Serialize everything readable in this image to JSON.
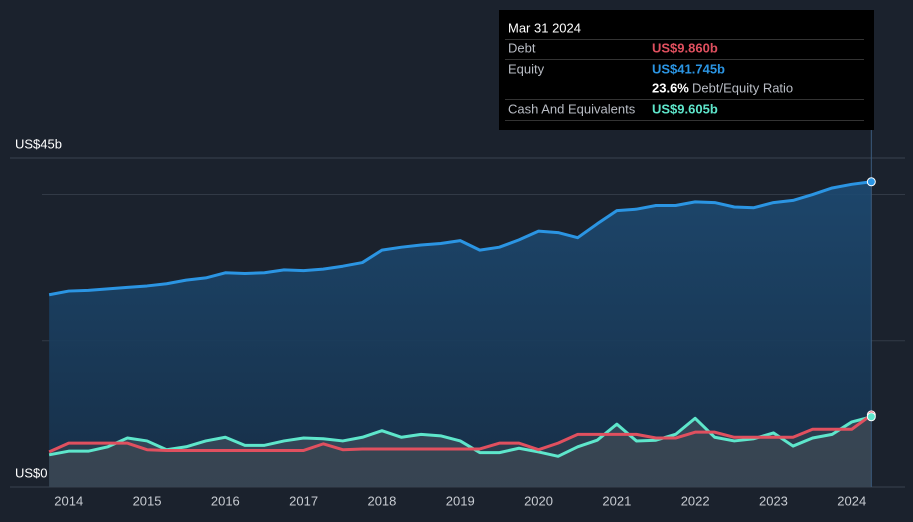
{
  "chart_data": {
    "type": "line",
    "xlim": [
      2013.25,
      2024.68
    ],
    "xticks": [
      2014,
      2015,
      2016,
      2017,
      2018,
      2019,
      2020,
      2021,
      2022,
      2023,
      2024
    ],
    "ylim": [
      0,
      45
    ],
    "yticks": [
      {
        "value": 0,
        "label": "US$0"
      },
      {
        "value": 45,
        "label": "US$45b"
      }
    ],
    "gridlines": [
      20,
      40
    ],
    "x": [
      2013.75,
      2014,
      2014.25,
      2014.5,
      2014.75,
      2015,
      2015.25,
      2015.5,
      2015.75,
      2016,
      2016.25,
      2016.5,
      2016.75,
      2017,
      2017.25,
      2017.5,
      2017.75,
      2018,
      2018.25,
      2018.5,
      2018.75,
      2019,
      2019.25,
      2019.5,
      2019.75,
      2020,
      2020.25,
      2020.5,
      2020.75,
      2021,
      2021.25,
      2021.5,
      2021.75,
      2022,
      2022.25,
      2022.5,
      2022.75,
      2023,
      2023.25,
      2023.5,
      2023.75,
      2024,
      2024.25
    ],
    "series": [
      {
        "name": "Debt",
        "color": "#e0505f",
        "values": [
          4.8,
          6.0,
          6.0,
          6.0,
          6.0,
          5.1,
          5.0,
          5.0,
          5.0,
          5.0,
          5.0,
          5.0,
          5.0,
          5.0,
          5.9,
          5.1,
          5.2,
          5.2,
          5.2,
          5.2,
          5.2,
          5.2,
          5.2,
          6.0,
          6.0,
          5.1,
          6.0,
          7.2,
          7.2,
          7.2,
          7.2,
          6.7,
          6.7,
          7.5,
          7.5,
          6.8,
          6.8,
          6.8,
          6.8,
          7.9,
          7.9,
          7.9,
          9.86
        ]
      },
      {
        "name": "Equity",
        "color": "#2b95e3",
        "values": [
          26.3,
          26.8,
          26.9,
          27.1,
          27.3,
          27.5,
          27.8,
          28.3,
          28.6,
          29.3,
          29.2,
          29.3,
          29.7,
          29.6,
          29.8,
          30.2,
          30.7,
          32.4,
          32.8,
          33.1,
          33.3,
          33.7,
          32.4,
          32.8,
          33.8,
          35.0,
          34.8,
          34.1,
          36.0,
          37.8,
          38.0,
          38.5,
          38.5,
          39.0,
          38.9,
          38.3,
          38.2,
          38.9,
          39.2,
          40.0,
          40.9,
          41.4,
          41.745
        ]
      },
      {
        "name": "Cash And Equivalents",
        "color": "#5ee6cb",
        "values": [
          4.4,
          4.9,
          4.9,
          5.5,
          6.7,
          6.3,
          5.1,
          5.5,
          6.3,
          6.8,
          5.7,
          5.7,
          6.3,
          6.7,
          6.6,
          6.3,
          6.8,
          7.7,
          6.8,
          7.2,
          7.0,
          6.3,
          4.7,
          4.7,
          5.3,
          4.8,
          4.2,
          5.5,
          6.4,
          8.6,
          6.3,
          6.4,
          7.2,
          9.4,
          6.8,
          6.3,
          6.6,
          7.4,
          5.6,
          6.7,
          7.2,
          8.9,
          9.605
        ]
      }
    ],
    "tooltip": {
      "date": "Mar 31 2024",
      "values": [
        "US$9.860b",
        "US$41.745b",
        "US$9.605b"
      ],
      "ratio": "23.6%",
      "ratio_label": "Debt/Equity Ratio"
    }
  }
}
